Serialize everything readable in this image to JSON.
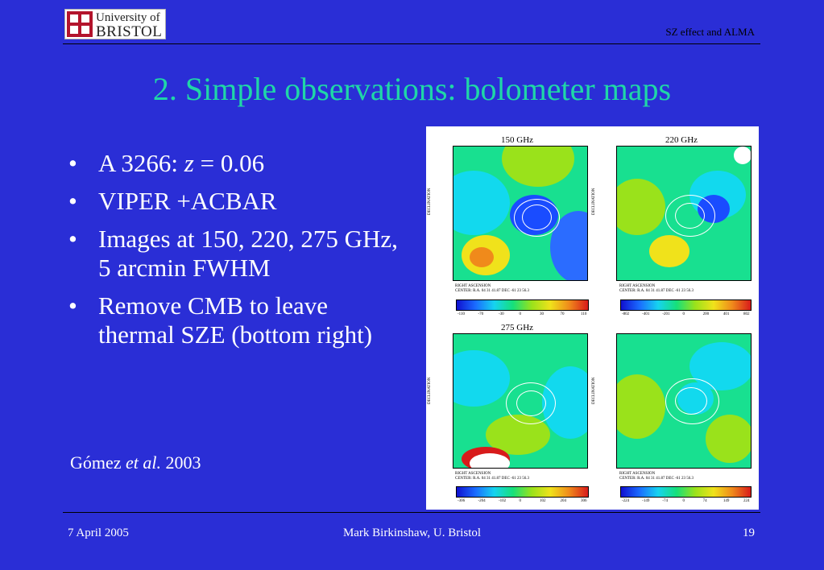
{
  "header": {
    "logo_line1": "University of",
    "logo_line2": "BRISTOL",
    "right_text": "SZ effect and ALMA"
  },
  "title": "2. Simple observations: bolometer maps",
  "bullets": [
    {
      "pre": "A 3266: ",
      "italic": "z",
      "post": " = 0.06"
    },
    {
      "pre": "VIPER +ACBAR",
      "italic": "",
      "post": ""
    },
    {
      "pre": "Images at 150, 220, 275 GHz, 5 arcmin FWHM",
      "italic": "",
      "post": ""
    },
    {
      "pre": "Remove CMB to leave thermal SZE (bottom right)",
      "italic": "",
      "post": ""
    }
  ],
  "citation": {
    "pre": "Gómez ",
    "italic": "et al.",
    "post": " 2003"
  },
  "figure": {
    "panels": [
      {
        "title": "150 GHz",
        "ticks": [
          "-110",
          "-70",
          "-30",
          "0",
          "30",
          "70",
          "110"
        ]
      },
      {
        "title": "220 GHz",
        "ticks": [
          "-802",
          "-401",
          "-201",
          "0",
          "200",
          "401",
          "802"
        ]
      },
      {
        "title": "275 GHz",
        "ticks": [
          "-306",
          "-204",
          "-102",
          "0",
          "102",
          "204",
          "306"
        ]
      },
      {
        "title": "",
        "ticks": [
          "-224",
          "-149",
          "-74",
          "0",
          "74",
          "149",
          "224"
        ]
      }
    ],
    "ylabel": "DECLINATION",
    "xlabel": "RIGHT ASCENSION",
    "center": "CENTER: R.A. 04 31 41.87 DEC -61 23 56.3"
  },
  "footer": {
    "date": "7 April 2005",
    "author": "Mark Birkinshaw, U. Bristol",
    "page": "19"
  }
}
